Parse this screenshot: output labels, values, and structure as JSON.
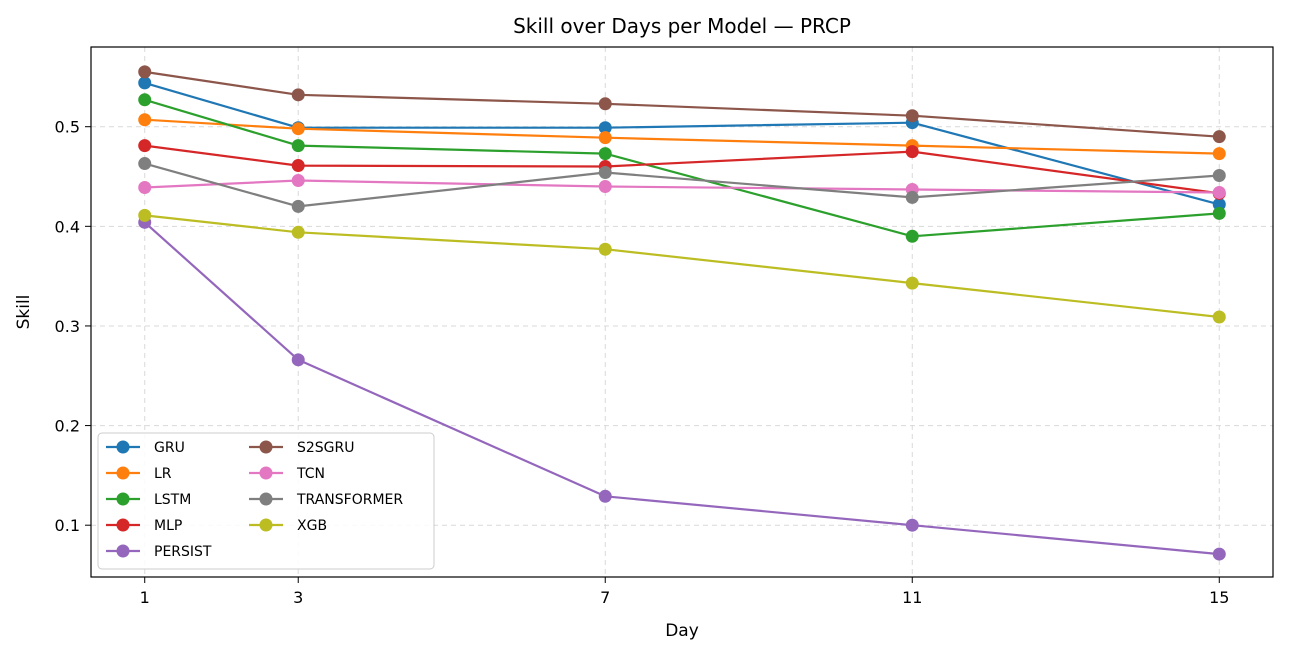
{
  "chart_data": {
    "type": "line",
    "title": "Skill over Days per Model — PRCP",
    "xlabel": "Day",
    "ylabel": "Skill",
    "x": [
      1,
      3,
      7,
      11,
      15
    ],
    "xticks": [
      "1",
      "3",
      "7",
      "11",
      "15"
    ],
    "xlim": [
      0.3,
      15.7
    ],
    "ylim": [
      0.048,
      0.58
    ],
    "yticks": [
      "0.1",
      "0.2",
      "0.3",
      "0.4",
      "0.5"
    ],
    "grid": true,
    "legend_position": "lower-left",
    "series": [
      {
        "name": "GRU",
        "color": "#1f77b4",
        "values": [
          0.544,
          0.499,
          0.499,
          0.504,
          0.422
        ]
      },
      {
        "name": "LR",
        "color": "#ff7f0e",
        "values": [
          0.507,
          0.498,
          0.489,
          0.481,
          0.473
        ]
      },
      {
        "name": "LSTM",
        "color": "#2ca02c",
        "values": [
          0.527,
          0.481,
          0.473,
          0.39,
          0.413
        ]
      },
      {
        "name": "MLP",
        "color": "#d62728",
        "values": [
          0.481,
          0.461,
          0.46,
          0.475,
          0.433
        ]
      },
      {
        "name": "PERSIST",
        "color": "#9467bd",
        "values": [
          0.404,
          0.266,
          0.129,
          0.1,
          0.071
        ]
      },
      {
        "name": "S2SGRU",
        "color": "#8c564b",
        "values": [
          0.555,
          0.532,
          0.523,
          0.511,
          0.49
        ]
      },
      {
        "name": "TCN",
        "color": "#e377c2",
        "values": [
          0.439,
          0.446,
          0.44,
          0.437,
          0.434
        ]
      },
      {
        "name": "TRANSFORMER",
        "color": "#7f7f7f",
        "values": [
          0.463,
          0.42,
          0.454,
          0.429,
          0.451
        ]
      },
      {
        "name": "XGB",
        "color": "#bcbd22",
        "values": [
          0.411,
          0.394,
          0.377,
          0.343,
          0.309
        ]
      }
    ]
  }
}
